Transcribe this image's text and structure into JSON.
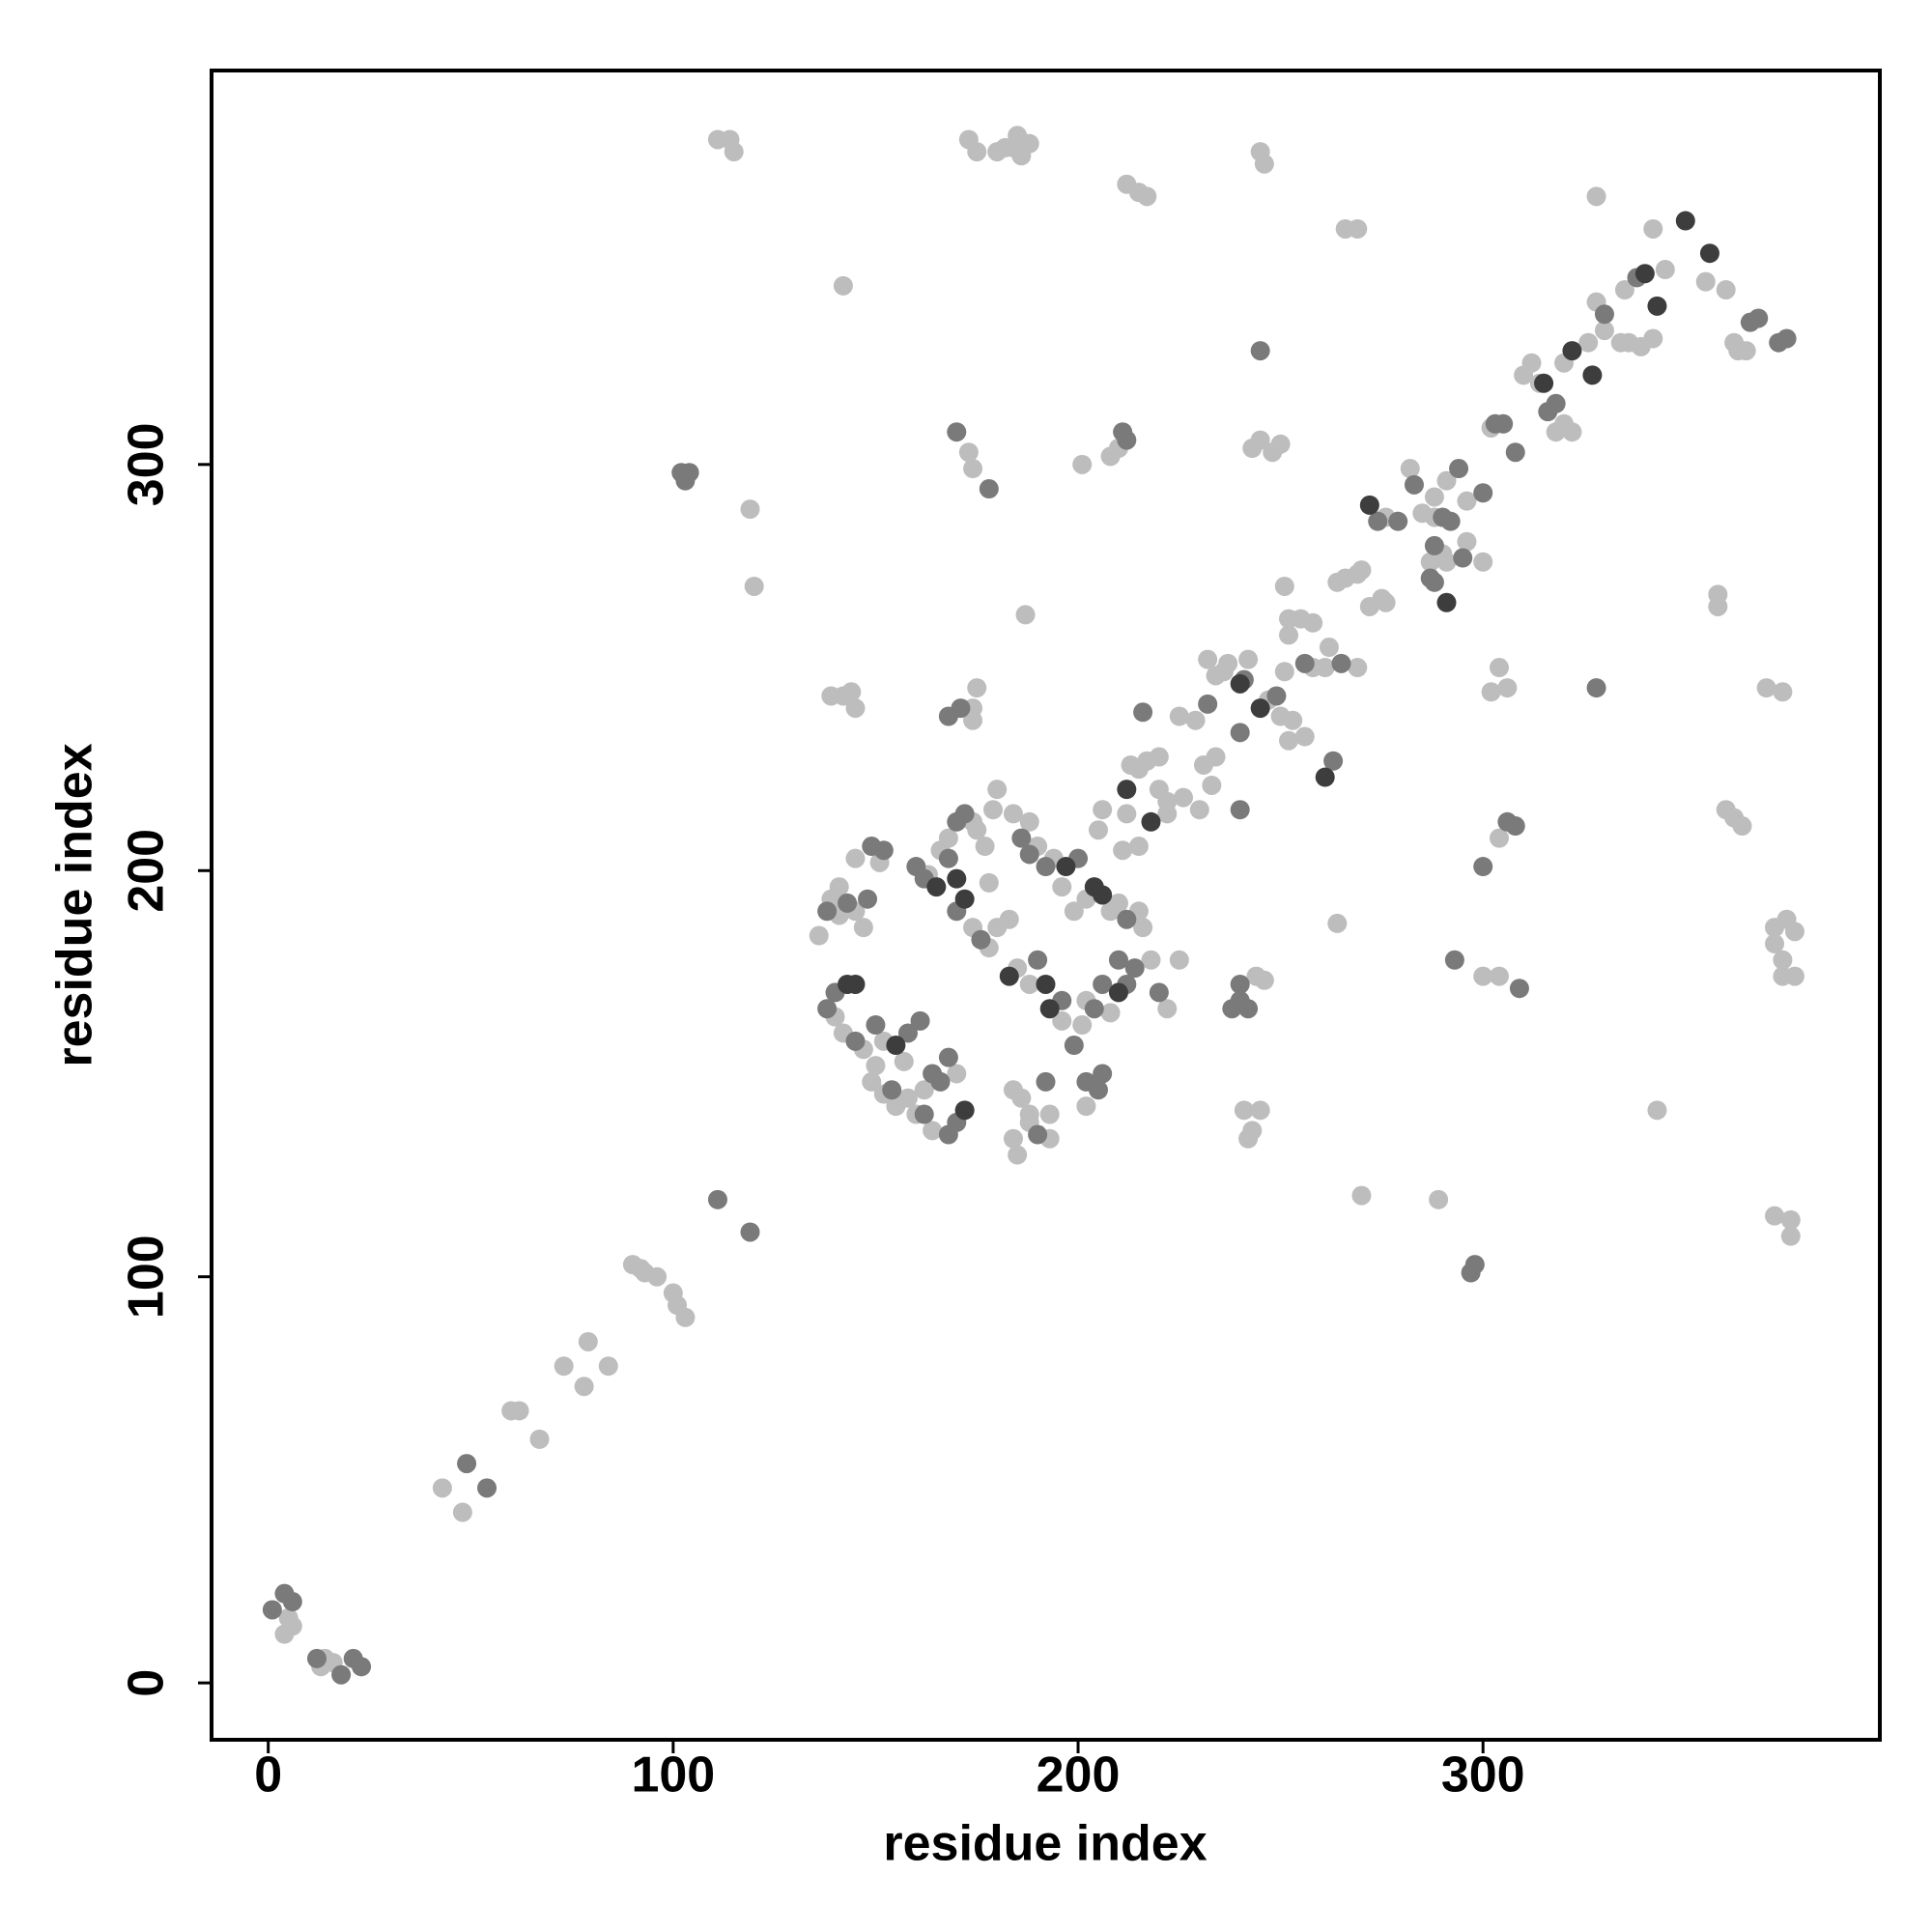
{
  "chart_data": {
    "type": "scatter",
    "x_label": "residue index",
    "y_label": "residue index",
    "xlim": [
      -14,
      398
    ],
    "ylim": [
      -14,
      397
    ],
    "xticks": [
      0,
      100,
      200,
      300
    ],
    "yticks": [
      0,
      100,
      200,
      300
    ],
    "grid": false,
    "series": [
      {
        "color": "#bdbdbd",
        "x": [
          4,
          6,
          5,
          14,
          16,
          13,
          43,
          48,
          60,
          67,
          62,
          73,
          79,
          78,
          84,
          90,
          93,
          96,
          100,
          101,
          103,
          92,
          119,
          120,
          111,
          115,
          114,
          142,
          173,
          175,
          180,
          182,
          185,
          188,
          186,
          184,
          212,
          215,
          217,
          245,
          246,
          266,
          269,
          328,
          342,
          345,
          355,
          360,
          362,
          335,
          328,
          330,
          334,
          336,
          339,
          342,
          326,
          320,
          314,
          312,
          310,
          320,
          322,
          318,
          302,
          276,
          282,
          285,
          288,
          288,
          291,
          296,
          290,
          287,
          296,
          300,
          291,
          266,
          269,
          270,
          272,
          275,
          276,
          264,
          269,
          262,
          261,
          258,
          252,
          255,
          258,
          251,
          252,
          251,
          253,
          256,
          252,
          250,
          247,
          237,
          242,
          232,
          234,
          236,
          225,
          229,
          234,
          231,
          233,
          230,
          226,
          222,
          220,
          220,
          217,
          215,
          213,
          206,
          215,
          211,
          205,
          212,
          222,
          136,
          139,
          141,
          145,
          147,
          145,
          141,
          140,
          142,
          147,
          152,
          150,
          149,
          152,
          155,
          158,
          160,
          162,
          170,
          172,
          164,
          157,
          151,
          163,
          166,
          168,
          174,
          174,
          178,
          180,
          183,
          178,
          177,
          175,
          179,
          180,
          174,
          175,
          174,
          142,
          139,
          145,
          144,
          184,
          188,
          190,
          194,
          196,
          199,
          202,
          208,
          210,
          215,
          216,
          218,
          201,
          196,
          188,
          185,
          202,
          208,
          225,
          222,
          202,
          186,
          184,
          188,
          193,
          188,
          185,
          184,
          193,
          244,
          246,
          241,
          243,
          245,
          242,
          173,
          174,
          201,
          208,
          210,
          187,
          243,
          245,
          248,
          250,
          264,
          270,
          289,
          300,
          304,
          304,
          302,
          304,
          306,
          343,
          358,
          358,
          360,
          362,
          364,
          363,
          365,
          370,
          374,
          372,
          375,
          377,
          372,
          374,
          377,
          374,
          372,
          376,
          376
        ],
        "y": [
          12,
          14,
          16,
          6,
          5,
          4,
          48,
          42,
          67,
          60,
          67,
          78,
          84,
          73,
          78,
          103,
          101,
          100,
          96,
          93,
          90,
          102,
          289,
          270,
          380,
          377,
          380,
          344,
          380,
          377,
          377,
          378,
          381,
          379,
          376,
          378,
          369,
          367,
          366,
          377,
          374,
          358,
          358,
          366,
          358,
          348,
          345,
          343,
          330,
          343,
          340,
          333,
          330,
          330,
          329,
          331,
          330,
          325,
          320,
          325,
          322,
          310,
          308,
          308,
          309,
          287,
          299,
          288,
          287,
          292,
          296,
          291,
          278,
          276,
          281,
          276,
          276,
          272,
          273,
          274,
          265,
          267,
          266,
          271,
          250,
          255,
          250,
          250,
          262,
          262,
          261,
          270,
          258,
          249,
          237,
          233,
          232,
          238,
          242,
          251,
          252,
          252,
          248,
          249,
          238,
          237,
          228,
          226,
          221,
          215,
          218,
          214,
          220,
          228,
          227,
          225,
          226,
          215,
          206,
          205,
          210,
          214,
          217,
          184,
          193,
          196,
          190,
          186,
          203,
          189,
          164,
          160,
          156,
          158,
          152,
          148,
          145,
          142,
          144,
          140,
          146,
          150,
          141,
          136,
          153,
          202,
          199,
          205,
          208,
          212,
          186,
          181,
          186,
          188,
          197,
          206,
          210,
          215,
          220,
          240,
          245,
          237,
          243,
          243,
          240,
          244,
          214,
          212,
          206,
          203,
          196,
          190,
          193,
          190,
          192,
          190,
          186,
          178,
          162,
          163,
          172,
          176,
          168,
          165,
          178,
          166,
          142,
          144,
          146,
          140,
          140,
          138,
          130,
          134,
          134,
          174,
          173,
          141,
          136,
          141,
          134,
          303,
          299,
          300,
          302,
          304,
          263,
          304,
          306,
          303,
          305,
          187,
          120,
          119,
          174,
          174,
          208,
          244,
          250,
          245,
          141,
          265,
          268,
          215,
          213,
          211,
          328,
          328,
          245,
          244,
          186,
          188,
          185,
          182,
          178,
          174,
          174,
          115,
          114,
          110
        ]
      },
      {
        "color": "#7a7a7a",
        "x": [
          1,
          4,
          6,
          12,
          18,
          21,
          23,
          49,
          54,
          111,
          119,
          102,
          104,
          103,
          245,
          366,
          368,
          373,
          375,
          338,
          330,
          318,
          316,
          303,
          305,
          308,
          274,
          279,
          283,
          290,
          294,
          300,
          292,
          288,
          287,
          288,
          295,
          265,
          256,
          249,
          241,
          232,
          240,
          216,
          240,
          263,
          143,
          138,
          140,
          138,
          145,
          150,
          154,
          158,
          161,
          164,
          166,
          168,
          170,
          168,
          162,
          148,
          149,
          152,
          160,
          162,
          168,
          170,
          172,
          170,
          176,
          171,
          168,
          186,
          188,
          192,
          200,
          212,
          214,
          212,
          206,
          204,
          199,
          190,
          196,
          210,
          220,
          202,
          205,
          206,
          192,
          190,
          240,
          238,
          242,
          240,
          170,
          178,
          211,
          212,
          298,
          297,
          293,
          309,
          300,
          306,
          308,
          328
        ],
        "y": [
          18,
          22,
          20,
          6,
          2,
          6,
          4,
          54,
          48,
          119,
          111,
          298,
          298,
          296,
          328,
          335,
          336,
          330,
          331,
          346,
          337,
          315,
          313,
          310,
          310,
          303,
          286,
          286,
          295,
          287,
          299,
          293,
          286,
          280,
          272,
          271,
          277,
          251,
          251,
          243,
          247,
          241,
          234,
          239,
          215,
          227,
          192,
          190,
          170,
          166,
          158,
          162,
          146,
          160,
          163,
          150,
          148,
          154,
          138,
          135,
          140,
          193,
          206,
          205,
          201,
          198,
          203,
          212,
          214,
          190,
          183,
          240,
          238,
          208,
          204,
          201,
          203,
          188,
          176,
          172,
          172,
          166,
          157,
          178,
          168,
          178,
          170,
          148,
          146,
          150,
          148,
          135,
          168,
          166,
          166,
          172,
          308,
          294,
          308,
          306,
          103,
          101,
          178,
          171,
          201,
          212,
          211,
          245
        ]
      },
      {
        "color": "#3d3d3d",
        "x": [
          350,
          356,
          340,
          343,
          327,
          322,
          315,
          272,
          291,
          245,
          240,
          212,
          218,
          261,
          143,
          145,
          155,
          172,
          165,
          170,
          172,
          197,
          204,
          206,
          210,
          193,
          192,
          183
        ],
        "y": [
          360,
          352,
          347,
          339,
          322,
          328,
          320,
          290,
          266,
          240,
          246,
          220,
          212,
          223,
          172,
          172,
          157,
          141,
          196,
          198,
          193,
          201,
          196,
          194,
          170,
          166,
          172,
          174
        ]
      }
    ]
  }
}
